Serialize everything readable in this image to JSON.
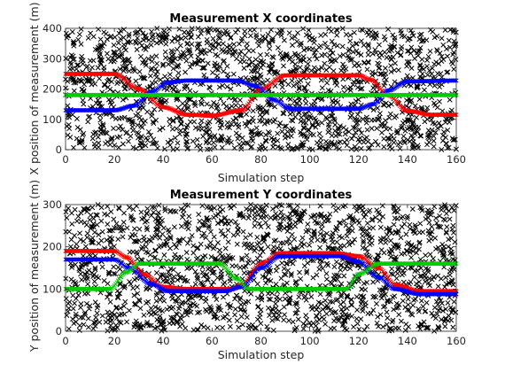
{
  "chart_data": [
    {
      "type": "scatter",
      "title": "Measurement X coordinates",
      "xlabel": "Simulation step",
      "ylabel": "X position of measurement (m)",
      "xlim": [
        0,
        160
      ],
      "ylim": [
        0,
        400
      ],
      "xticks": [
        0,
        20,
        40,
        60,
        80,
        100,
        120,
        140,
        160
      ],
      "yticks": [
        0,
        100,
        200,
        300,
        400
      ],
      "clutter": {
        "marker": "x",
        "color": "#000000",
        "count": 1800,
        "x_range": [
          0,
          160
        ],
        "y_range": [
          0,
          400
        ]
      },
      "series": [
        {
          "color": "#ff0000",
          "marker": "x",
          "keyframes": [
            [
              0,
              250
            ],
            [
              20,
              250
            ],
            [
              30,
              200
            ],
            [
              40,
              140
            ],
            [
              50,
              115
            ],
            [
              60,
              112
            ],
            [
              72,
              130
            ],
            [
              80,
              200
            ],
            [
              90,
              245
            ],
            [
              120,
              245
            ],
            [
              125,
              230
            ],
            [
              132,
              180
            ],
            [
              140,
              128
            ],
            [
              150,
              115
            ],
            [
              160,
              115
            ]
          ]
        },
        {
          "color": "#0000ff",
          "marker": "x",
          "keyframes": [
            [
              0,
              130
            ],
            [
              20,
              130
            ],
            [
              28,
              145
            ],
            [
              35,
              190
            ],
            [
              42,
              222
            ],
            [
              50,
              228
            ],
            [
              70,
              228
            ],
            [
              78,
              210
            ],
            [
              85,
              165
            ],
            [
              92,
              135
            ],
            [
              120,
              135
            ],
            [
              126,
              150
            ],
            [
              132,
              195
            ],
            [
              140,
              225
            ],
            [
              160,
              228
            ]
          ]
        },
        {
          "color": "#00cc00",
          "marker": "x",
          "keyframes": [
            [
              0,
              180
            ],
            [
              160,
              180
            ]
          ]
        }
      ]
    },
    {
      "type": "scatter",
      "title": "Measurement Y coordinates",
      "xlabel": "Simulation step",
      "ylabel": "Y position of measurement (m)",
      "xlim": [
        0,
        160
      ],
      "ylim": [
        0,
        300
      ],
      "xticks": [
        0,
        20,
        40,
        60,
        80,
        100,
        120,
        140,
        160
      ],
      "yticks": [
        0,
        100,
        200,
        300
      ],
      "clutter": {
        "marker": "x",
        "color": "#000000",
        "count": 1800,
        "x_range": [
          0,
          160
        ],
        "y_range": [
          0,
          300
        ]
      },
      "series": [
        {
          "color": "#ff0000",
          "marker": "x",
          "keyframes": [
            [
              0,
              190
            ],
            [
              20,
              190
            ],
            [
              25,
              175
            ],
            [
              32,
              135
            ],
            [
              40,
              105
            ],
            [
              50,
              100
            ],
            [
              68,
              100
            ],
            [
              72,
              110
            ],
            [
              80,
              160
            ],
            [
              88,
              185
            ],
            [
              110,
              185
            ],
            [
              120,
              178
            ],
            [
              128,
              150
            ],
            [
              135,
              110
            ],
            [
              145,
              95
            ],
            [
              160,
              95
            ]
          ]
        },
        {
          "color": "#0000ff",
          "marker": "x",
          "keyframes": [
            [
              0,
              170
            ],
            [
              20,
              170
            ],
            [
              26,
              150
            ],
            [
              35,
              112
            ],
            [
              42,
              95
            ],
            [
              65,
              95
            ],
            [
              72,
              105
            ],
            [
              80,
              150
            ],
            [
              88,
              178
            ],
            [
              112,
              178
            ],
            [
              120,
              165
            ],
            [
              128,
              128
            ],
            [
              135,
              100
            ],
            [
              145,
              88
            ],
            [
              160,
              88
            ]
          ]
        },
        {
          "color": "#00cc00",
          "marker": "x",
          "keyframes": [
            [
              0,
              100
            ],
            [
              18,
              100
            ],
            [
              25,
              140
            ],
            [
              30,
              160
            ],
            [
              63,
              160
            ],
            [
              70,
              125
            ],
            [
              75,
              100
            ],
            [
              115,
              100
            ],
            [
              120,
              135
            ],
            [
              128,
              160
            ],
            [
              160,
              160
            ]
          ]
        }
      ]
    }
  ]
}
